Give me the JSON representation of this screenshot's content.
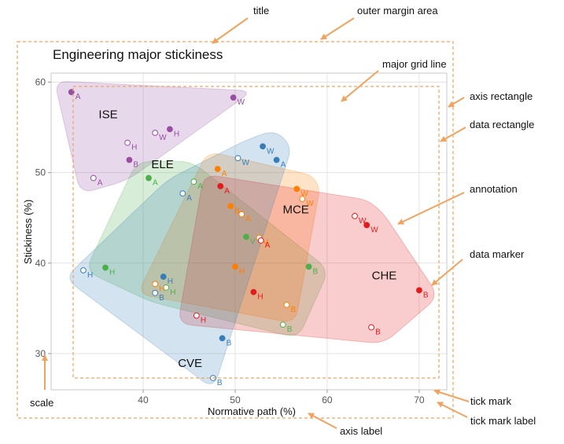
{
  "chart_data": {
    "type": "scatter",
    "title": "Engineering major stickiness",
    "xlabel": "Normative path (%)",
    "ylabel": "Stickiness (%)",
    "xlim": [
      30,
      73
    ],
    "ylim": [
      26,
      61
    ],
    "xticks": [
      40,
      50,
      60,
      70
    ],
    "yticks": [
      30,
      40,
      50,
      60
    ],
    "grid": true,
    "series": [
      {
        "region": "ISE",
        "color": "#984ea3",
        "label_pos": [
          36.2,
          56
        ],
        "points": [
          {
            "x": 32.2,
            "y": 58.9,
            "label": "A",
            "filled": true
          },
          {
            "x": 49.8,
            "y": 58.3,
            "label": "W",
            "filled": true
          },
          {
            "x": 42.9,
            "y": 54.8,
            "label": "H",
            "filled": true
          },
          {
            "x": 41.3,
            "y": 54.4,
            "label": "W",
            "filled": false
          },
          {
            "x": 38.3,
            "y": 53.3,
            "label": "H",
            "filled": false
          },
          {
            "x": 38.5,
            "y": 51.4,
            "label": "B",
            "filled": true
          },
          {
            "x": 34.6,
            "y": 49.4,
            "label": "A",
            "filled": false
          }
        ]
      },
      {
        "region": "ELE",
        "color": "#4daf4a",
        "label_pos": [
          42.1,
          50.5
        ],
        "points": [
          {
            "x": 40.6,
            "y": 49.4,
            "label": "A",
            "filled": true
          },
          {
            "x": 45.5,
            "y": 49.0,
            "label": "A",
            "filled": false
          },
          {
            "x": 35.9,
            "y": 39.5,
            "label": "H",
            "filled": true
          },
          {
            "x": 42.5,
            "y": 37.3,
            "label": "H",
            "filled": false
          },
          {
            "x": 51.2,
            "y": 42.9,
            "label": "V",
            "filled": true
          },
          {
            "x": 58.0,
            "y": 39.6,
            "label": "B",
            "filled": true
          },
          {
            "x": 55.2,
            "y": 33.2,
            "label": "B",
            "filled": false
          }
        ]
      },
      {
        "region": "MCE",
        "color": "#ff7f00",
        "label_pos": [
          56.6,
          45.5
        ],
        "points": [
          {
            "x": 48.1,
            "y": 50.4,
            "label": "A",
            "filled": true
          },
          {
            "x": 56.7,
            "y": 48.2,
            "label": "W",
            "filled": true
          },
          {
            "x": 57.3,
            "y": 47.1,
            "label": "W",
            "filled": false
          },
          {
            "x": 49.5,
            "y": 46.3,
            "label": "B",
            "filled": true
          },
          {
            "x": 50.7,
            "y": 45.4,
            "label": "A",
            "filled": false
          },
          {
            "x": 52.6,
            "y": 42.8,
            "label": "V",
            "filled": false
          },
          {
            "x": 50.0,
            "y": 39.6,
            "label": "H",
            "filled": true
          },
          {
            "x": 41.3,
            "y": 37.7,
            "label": "H",
            "filled": false
          },
          {
            "x": 55.6,
            "y": 35.4,
            "label": "B",
            "filled": false
          }
        ]
      },
      {
        "region": "CHE",
        "color": "#e41a1c",
        "label_pos": [
          66.2,
          38.2
        ],
        "points": [
          {
            "x": 48.4,
            "y": 48.5,
            "label": "A",
            "filled": true
          },
          {
            "x": 52.8,
            "y": 42.5,
            "label": "A",
            "filled": false
          },
          {
            "x": 63.0,
            "y": 45.2,
            "label": "W",
            "filled": false
          },
          {
            "x": 64.3,
            "y": 44.2,
            "label": "W",
            "filled": true
          },
          {
            "x": 52.0,
            "y": 36.8,
            "label": "H",
            "filled": true
          },
          {
            "x": 45.8,
            "y": 34.2,
            "label": "H",
            "filled": false
          },
          {
            "x": 70.0,
            "y": 37.0,
            "label": "B",
            "filled": true
          },
          {
            "x": 64.8,
            "y": 32.9,
            "label": "B",
            "filled": false
          }
        ]
      },
      {
        "region": "CVE",
        "color": "#377eb8",
        "label_pos": [
          45.1,
          28.5
        ],
        "points": [
          {
            "x": 53.0,
            "y": 52.9,
            "label": "W",
            "filled": true
          },
          {
            "x": 54.5,
            "y": 51.4,
            "label": "A",
            "filled": true
          },
          {
            "x": 50.3,
            "y": 51.6,
            "label": "W",
            "filled": false
          },
          {
            "x": 44.3,
            "y": 47.7,
            "label": "A",
            "filled": false
          },
          {
            "x": 33.5,
            "y": 39.2,
            "label": "H",
            "filled": false
          },
          {
            "x": 42.2,
            "y": 38.5,
            "label": "H",
            "filled": true
          },
          {
            "x": 41.3,
            "y": 36.7,
            "label": "B",
            "filled": false
          },
          {
            "x": 48.6,
            "y": 31.7,
            "label": "B",
            "filled": true
          },
          {
            "x": 47.6,
            "y": 27.3,
            "label": "B",
            "filled": false
          }
        ]
      }
    ],
    "annotations": [
      "title",
      "outer margin area",
      "major grid line",
      "axis rectangle",
      "data rectangle",
      "annotation",
      "data marker",
      "scale",
      "axis label",
      "tick mark",
      "tick mark label"
    ]
  }
}
